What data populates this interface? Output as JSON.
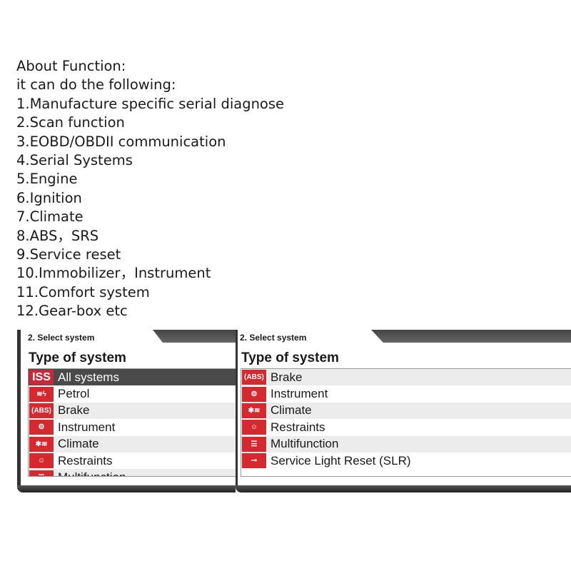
{
  "about": {
    "lines": [
      "About Function:",
      "it can do the following:",
      "1.Manufacture specific serial diagnose",
      "2.Scan function",
      "3.EOBD/OBDII communication",
      "4.Serial Systems",
      "5.Engine",
      "6.Ignition",
      "7.Climate",
      "8.ABS，SRS",
      "9.Service reset",
      "10.Immobilizer，Instrument",
      "11.Comfort system",
      "12.Gear-box etc"
    ]
  },
  "left_panel": {
    "header": "2. Select system",
    "title": "Type of system",
    "items": [
      {
        "icon": "iss-icon",
        "glyph": "ISS",
        "label": "All systems",
        "selected": true
      },
      {
        "icon": "petrol-icon",
        "glyph": "≋ϟ",
        "label": "Petrol"
      },
      {
        "icon": "abs-icon",
        "glyph": "(ABS)",
        "label": "Brake"
      },
      {
        "icon": "instrument-icon",
        "glyph": "⚙",
        "label": "Instrument"
      },
      {
        "icon": "climate-icon",
        "glyph": "✱≋",
        "label": "Climate"
      },
      {
        "icon": "airbag-icon",
        "glyph": "☺",
        "label": "Restraints"
      },
      {
        "icon": "multifunction-icon",
        "glyph": "☰",
        "label": "Multifunction"
      }
    ]
  },
  "right_panel": {
    "header": "2. Select system",
    "title": "Type of system",
    "items": [
      {
        "icon": "abs-icon",
        "glyph": "(ABS)",
        "label": "Brake"
      },
      {
        "icon": "instrument-icon",
        "glyph": "⚙",
        "label": "Instrument"
      },
      {
        "icon": "climate-icon",
        "glyph": "✱≋",
        "label": "Climate"
      },
      {
        "icon": "airbag-icon",
        "glyph": "☺",
        "label": "Restraints"
      },
      {
        "icon": "multifunction-icon",
        "glyph": "☰",
        "label": "Multifunction"
      },
      {
        "icon": "wrench-icon",
        "glyph": "⊸",
        "label": "Service Light Reset (SLR)"
      }
    ]
  },
  "colors": {
    "icon_red": "#d42a2f",
    "selected_row": "#4a4a4a"
  }
}
